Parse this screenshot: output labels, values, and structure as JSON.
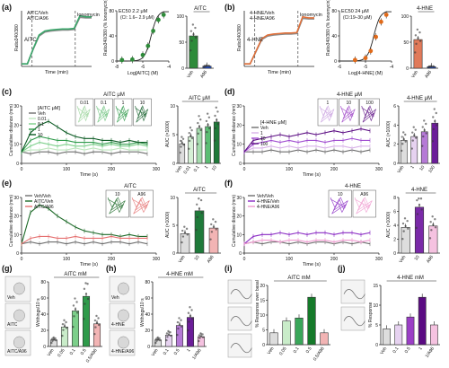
{
  "figure": {
    "panels": [
      "(a)",
      "(b)",
      "(c)",
      "(d)",
      "(e)",
      "(f)",
      "(g)",
      "(h)",
      "(i)",
      "(j)"
    ]
  },
  "chart_data": [
    {
      "panel": "(a)",
      "type": "line",
      "xlabel": "Time (min)",
      "ylabel": "Ratio340/380",
      "series": [
        {
          "name": "AITC/Veh",
          "color": "#3aa66a"
        },
        {
          "name": "AITC/A96",
          "color": "#8b8b8b"
        }
      ],
      "annotations": [
        "AITC",
        "Ionomycin"
      ],
      "x": [
        0,
        0.5,
        1,
        1.5,
        2,
        2.5,
        3,
        3.5,
        4,
        4.5,
        5,
        5.5,
        6
      ],
      "values_veh": [
        0.05,
        0.05,
        0.35,
        0.62,
        0.7,
        0.72,
        0.73,
        0.74,
        0.74,
        0.75,
        1.0,
        0.98,
        0.98
      ],
      "values_a96": [
        0.05,
        0.05,
        0.34,
        0.6,
        0.68,
        0.7,
        0.71,
        0.72,
        0.72,
        0.73,
        0.97,
        0.96,
        0.96
      ],
      "ylim": [
        0,
        1.1
      ]
    },
    {
      "panel": "(a)",
      "type": "scatter",
      "title": "EC50 2.2 μM",
      "subtitle": "(CI: 1.6– 2.9 μM)",
      "xlabel": "Log[AITC] (M)",
      "ylabel": "Ratio340/380 (% Ionomycin)",
      "x": [
        -8,
        -7,
        -6,
        -5.5,
        -5,
        -4.5,
        -4
      ],
      "y": [
        2,
        3,
        12,
        30,
        60,
        82,
        92
      ],
      "xticks": [
        "-8",
        "-6",
        "-4"
      ],
      "yticks": [
        "0",
        "40",
        "80"
      ],
      "ylim": [
        0,
        100
      ],
      "color": "#2e8b3a"
    },
    {
      "panel": "(a)",
      "type": "bar",
      "title": "AITC",
      "categories": [
        "Veh",
        "A96"
      ],
      "values": [
        62,
        4
      ],
      "yticks": [
        "0",
        "50",
        "100"
      ],
      "ylim": [
        0,
        100
      ],
      "colors": [
        "#2e8b3a",
        "#1f4fd1"
      ]
    },
    {
      "panel": "(b)",
      "type": "line",
      "xlabel": "Time (min)",
      "ylabel": "Ratio340/380",
      "series": [
        {
          "name": "4-HNE/Veh",
          "color": "#e0703a"
        },
        {
          "name": "4-HNE/A96",
          "color": "#8b8b8b"
        }
      ],
      "annotations": [
        "4-HNE",
        "Ionomycin"
      ],
      "x": [
        0,
        0.5,
        1,
        1.5,
        2,
        2.5,
        3,
        3.5,
        4,
        4.5,
        5,
        5.5,
        6
      ],
      "values_veh": [
        0.05,
        0.05,
        0.3,
        0.55,
        0.62,
        0.64,
        0.65,
        0.66,
        0.66,
        0.67,
        0.98,
        0.96,
        0.96
      ],
      "values_a96": [
        0.05,
        0.05,
        0.29,
        0.53,
        0.6,
        0.62,
        0.63,
        0.64,
        0.64,
        0.65,
        0.95,
        0.94,
        0.94
      ],
      "ylim": [
        0,
        1.1
      ]
    },
    {
      "panel": "(b)",
      "type": "scatter",
      "title": "EC50 24 μM",
      "subtitle": "(CI:19–30 μM)",
      "xlabel": "Log[4-HNE] (M)",
      "ylabel": "Ratio340/380 (% Ionomycin)",
      "x": [
        -7,
        -6,
        -5.5,
        -5,
        -4.5,
        -4
      ],
      "y": [
        2,
        6,
        20,
        48,
        78,
        92
      ],
      "xticks": [
        "-6",
        "-5",
        "-4"
      ],
      "yticks": [
        "0",
        "40",
        "80"
      ],
      "ylim": [
        0,
        100
      ],
      "color": "#e06a1a"
    },
    {
      "panel": "(b)",
      "type": "bar",
      "title": "4-HNE",
      "categories": [
        "Veh",
        "A96"
      ],
      "values": [
        55,
        3
      ],
      "yticks": [
        "0",
        "50",
        "100"
      ],
      "ylim": [
        0,
        100
      ],
      "colors": [
        "#e07a5a",
        "#1f4fd1"
      ]
    },
    {
      "panel": "(c)",
      "type": "line",
      "legend_title": "[AITC μM]",
      "xlabel": "Time (s)",
      "ylabel": "Cumulative distance (mm)",
      "series": [
        {
          "name": "Veh",
          "color": "#6e6e6e",
          "values": [
            6,
            5,
            6,
            6,
            5,
            6,
            6,
            5,
            6,
            6,
            5,
            6,
            6,
            6,
            5
          ]
        },
        {
          "name": "0.01",
          "color": "#bfe6bf",
          "values": [
            6,
            7,
            7,
            8,
            7,
            7,
            8,
            7,
            8,
            7,
            7,
            8,
            7,
            7,
            7
          ]
        },
        {
          "name": "0.1",
          "color": "#7ccf8a",
          "values": [
            6,
            9,
            11,
            10,
            9,
            10,
            9,
            9,
            10,
            9,
            10,
            9,
            9,
            10,
            9
          ]
        },
        {
          "name": "1",
          "color": "#2e9a4a",
          "values": [
            6,
            12,
            14,
            13,
            12,
            12,
            11,
            11,
            11,
            10,
            11,
            10,
            10,
            11,
            10
          ]
        },
        {
          "name": "10",
          "color": "#0b5a23",
          "values": [
            6,
            16,
            20,
            22,
            19,
            16,
            14,
            13,
            13,
            12,
            12,
            11,
            12,
            11,
            11
          ]
        }
      ],
      "x": [
        0,
        20,
        40,
        60,
        80,
        100,
        120,
        140,
        160,
        180,
        200,
        220,
        240,
        260,
        280
      ],
      "xticks": [
        "0",
        "100",
        "200",
        "300"
      ],
      "yticks": [
        "0",
        "10",
        "20",
        "30"
      ],
      "ylim": [
        0,
        30
      ],
      "thumbs_title": "AITC μM",
      "thumbs": [
        "0.01",
        "0.1",
        "1",
        "10"
      ]
    },
    {
      "panel": "(c)",
      "type": "bar",
      "title": "AITC μM",
      "ylabel": "AUC (×1000)",
      "categories": [
        "Veh",
        "0.01",
        "0.1",
        "1",
        "10"
      ],
      "values": [
        3.4,
        4.6,
        6.1,
        6.4,
        7.2
      ],
      "yticks": [
        "0",
        "5",
        "10"
      ],
      "ylim": [
        0,
        10
      ],
      "colors": [
        "#dddddd",
        "#d6f0d6",
        "#a5dcae",
        "#5bbd73",
        "#1f7a3a"
      ]
    },
    {
      "panel": "(d)",
      "type": "line",
      "legend_title": "[4-HNE μM]",
      "xlabel": "Time (s)",
      "ylabel": "Cumulative distance (mm)",
      "series": [
        {
          "name": "Veh",
          "color": "#6e6e6e",
          "values": [
            6,
            6,
            6,
            7,
            6,
            6,
            7,
            6,
            7,
            6,
            7,
            6,
            7,
            6,
            7
          ]
        },
        {
          "name": "1",
          "color": "#d8b2e8",
          "values": [
            6,
            8,
            8,
            9,
            8,
            9,
            8,
            9,
            9,
            8,
            9,
            9,
            8,
            9,
            9
          ]
        },
        {
          "name": "10",
          "color": "#a04cd0",
          "values": [
            6,
            10,
            11,
            12,
            11,
            12,
            11,
            12,
            12,
            11,
            12,
            12,
            13,
            12,
            12
          ]
        },
        {
          "name": "100",
          "color": "#5a0b82",
          "values": [
            6,
            12,
            13,
            14,
            15,
            14,
            15,
            16,
            15,
            16,
            17,
            16,
            17,
            18,
            17
          ]
        }
      ],
      "x": [
        0,
        20,
        40,
        60,
        80,
        100,
        120,
        140,
        160,
        180,
        200,
        220,
        240,
        260,
        280
      ],
      "xticks": [
        "0",
        "100",
        "200",
        "300"
      ],
      "yticks": [
        "0",
        "10",
        "20",
        "30"
      ],
      "ylim": [
        0,
        30
      ],
      "thumbs_title": "4-HNE μM",
      "thumbs": [
        "1",
        "10",
        "100"
      ]
    },
    {
      "panel": "(d)",
      "type": "bar",
      "title": "4-HNE μM",
      "ylabel": "AUC (×1000)",
      "categories": [
        "Veh",
        "1",
        "10",
        "100"
      ],
      "values": [
        2.4,
        2.8,
        3.3,
        4.2
      ],
      "yticks": [
        "0",
        "2",
        "4",
        "6"
      ],
      "ylim": [
        0,
        6
      ],
      "colors": [
        "#dddddd",
        "#e6d2f0",
        "#b57ad6",
        "#6b1d99"
      ]
    },
    {
      "panel": "(e)",
      "type": "line",
      "xlabel": "Time (s)",
      "ylabel": "Cumulative distance (mm)",
      "series": [
        {
          "name": "Veh/Veh",
          "color": "#6e6e6e",
          "values": [
            5,
            6,
            5,
            6,
            6,
            5,
            6,
            5,
            6,
            5,
            6,
            6,
            5,
            6,
            5
          ]
        },
        {
          "name": "AITC/Veh",
          "color": "#1f6b2a",
          "values": [
            5,
            22,
            26,
            24,
            20,
            17,
            14,
            12,
            11,
            10,
            10,
            9,
            10,
            9,
            9
          ]
        },
        {
          "name": "AITC/A96",
          "color": "#e57070",
          "values": [
            5,
            8,
            9,
            9,
            8,
            8,
            9,
            8,
            8,
            8,
            9,
            8,
            8,
            8,
            8
          ]
        }
      ],
      "x": [
        0,
        20,
        40,
        60,
        80,
        100,
        120,
        140,
        160,
        180,
        200,
        220,
        240,
        260,
        280
      ],
      "xticks": [
        "0",
        "100",
        "200",
        "300"
      ],
      "yticks": [
        "0",
        "10",
        "20",
        "30"
      ],
      "ylim": [
        0,
        30
      ],
      "thumbs_title": "AITC",
      "thumbs": [
        "10",
        "A96"
      ]
    },
    {
      "panel": "(e)",
      "type": "bar",
      "title": "AITC",
      "ylabel": "AUC (×1000)",
      "categories": [
        "Veh",
        "10",
        "A96"
      ],
      "values": [
        3.5,
        7.6,
        4.5
      ],
      "yticks": [
        "0",
        "5",
        "10"
      ],
      "ylim": [
        0,
        10
      ],
      "colors": [
        "#dddddd",
        "#1f7a3a",
        "#f2b4b4"
      ]
    },
    {
      "panel": "(f)",
      "type": "line",
      "xlabel": "Time (s)",
      "ylabel": "Cumulative distance (mm)",
      "series": [
        {
          "name": "Veh/Veh",
          "color": "#6e6e6e",
          "values": [
            5,
            6,
            5,
            6,
            6,
            5,
            6,
            5,
            6,
            6,
            5,
            6,
            5,
            6,
            5
          ]
        },
        {
          "name": "4-HNE/Veh",
          "color": "#8a2bc4",
          "values": [
            5,
            9,
            10,
            10,
            11,
            10,
            11,
            10,
            11,
            11,
            10,
            11,
            11,
            10,
            11
          ]
        },
        {
          "name": "4-HNE/A96",
          "color": "#f09ad0",
          "values": [
            5,
            6,
            7,
            7,
            6,
            7,
            7,
            6,
            7,
            7,
            6,
            7,
            7,
            6,
            7
          ]
        }
      ],
      "x": [
        0,
        20,
        40,
        60,
        80,
        100,
        120,
        140,
        160,
        180,
        200,
        220,
        240,
        260,
        280
      ],
      "xticks": [
        "0",
        "100",
        "200",
        "300"
      ],
      "yticks": [
        "0",
        "10",
        "20",
        "30"
      ],
      "ylim": [
        0,
        30
      ],
      "thumbs_title": "4-HNE",
      "thumbs": [
        "10",
        "A96"
      ]
    },
    {
      "panel": "(f)",
      "type": "bar",
      "title": "4-HNE",
      "ylabel": "AUC (×1000)",
      "categories": [
        "Veh",
        "10",
        "A96"
      ],
      "values": [
        3.7,
        6.6,
        3.9
      ],
      "yticks": [
        "0",
        "2",
        "4",
        "6",
        "8"
      ],
      "ylim": [
        0,
        8
      ],
      "colors": [
        "#dddddd",
        "#7a2aa8",
        "#f5c2e0"
      ]
    },
    {
      "panel": "(g)",
      "type": "bar",
      "title": "AITC mM",
      "ylabel": "Writhings/10 s",
      "categories": [
        "Veh",
        "0.05",
        "0.1",
        "0.5",
        "0.5/A96"
      ],
      "values": [
        8,
        24,
        44,
        62,
        28
      ],
      "yticks": [
        "0",
        "20",
        "40",
        "60",
        "80"
      ],
      "ylim": [
        0,
        80
      ],
      "colors": [
        "#dddddd",
        "#c9ecc9",
        "#7ccf8a",
        "#2e9a4a",
        "#f2b4b4"
      ],
      "thumbs": [
        "Veh",
        "AITC",
        "AITC/A96"
      ]
    },
    {
      "panel": "(h)",
      "type": "bar",
      "title": "4-HNE mM",
      "ylabel": "Writhings/10 s",
      "categories": [
        "Veh",
        "0.1",
        "0.5",
        "1",
        "1/A96"
      ],
      "values": [
        8,
        14,
        26,
        36,
        12
      ],
      "yticks": [
        "0",
        "20",
        "40",
        "60",
        "80"
      ],
      "ylim": [
        0,
        80
      ],
      "colors": [
        "#dddddd",
        "#e6d2f0",
        "#b57ad6",
        "#6b1d99",
        "#f5c2e0"
      ],
      "thumbs": [
        "Veh",
        "4-HNE",
        "4-HNE/A96"
      ]
    },
    {
      "panel": "(i)",
      "type": "bar",
      "title": "AITC mM",
      "ylabel": "% Response over basal",
      "categories": [
        "Veh",
        "0.05",
        "0.1",
        "0.5",
        "0.5/A96"
      ],
      "values": [
        4,
        8,
        9,
        16,
        4
      ],
      "yticks": [
        "0",
        "5",
        "10",
        "15",
        "20"
      ],
      "ylim": [
        0,
        20
      ],
      "colors": [
        "#dddddd",
        "#c9ecc9",
        "#3aa65a",
        "#157a2a",
        "#f2b4b4"
      ]
    },
    {
      "panel": "(j)",
      "type": "bar",
      "title": "4-HNE mM",
      "ylabel": "% Response",
      "categories": [
        "Veh",
        "0.1",
        "0.5",
        "1",
        "1/A96"
      ],
      "values": [
        4,
        5,
        7,
        12,
        5
      ],
      "yticks": [
        "0",
        "5",
        "10",
        "15"
      ],
      "ylim": [
        0,
        15
      ],
      "colors": [
        "#dddddd",
        "#e6d2f0",
        "#9b3fc6",
        "#5a0b82",
        "#f5c2e0"
      ]
    }
  ]
}
